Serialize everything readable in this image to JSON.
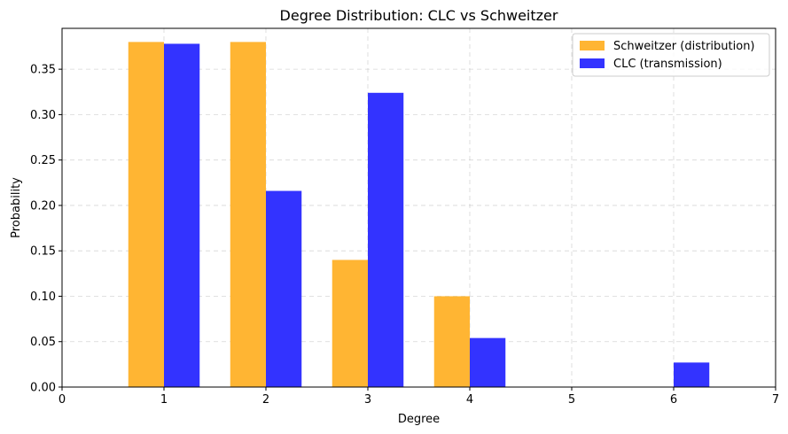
{
  "chart_data": {
    "type": "bar",
    "title": "Degree Distribution: CLC vs Schweitzer",
    "xlabel": "Degree",
    "ylabel": "Probability",
    "xlim": [
      0,
      7
    ],
    "ylim": [
      0,
      0.395
    ],
    "xticks": [
      "0",
      "1",
      "2",
      "3",
      "4",
      "5",
      "6",
      "7"
    ],
    "yticks": [
      "0.00",
      "0.05",
      "0.10",
      "0.15",
      "0.20",
      "0.25",
      "0.30",
      "0.35"
    ],
    "grid": true,
    "legend_position": "top-right",
    "series": [
      {
        "name": "Schweitzer (distribution)",
        "color": "#FFB533",
        "x": [
          1,
          2,
          3,
          4
        ],
        "values": [
          0.38,
          0.38,
          0.14,
          0.1
        ]
      },
      {
        "name": "CLC (transmission)",
        "color": "#3333FF",
        "x": [
          1,
          2,
          3,
          4,
          6
        ],
        "values": [
          0.378,
          0.216,
          0.324,
          0.054,
          0.027
        ]
      }
    ]
  }
}
